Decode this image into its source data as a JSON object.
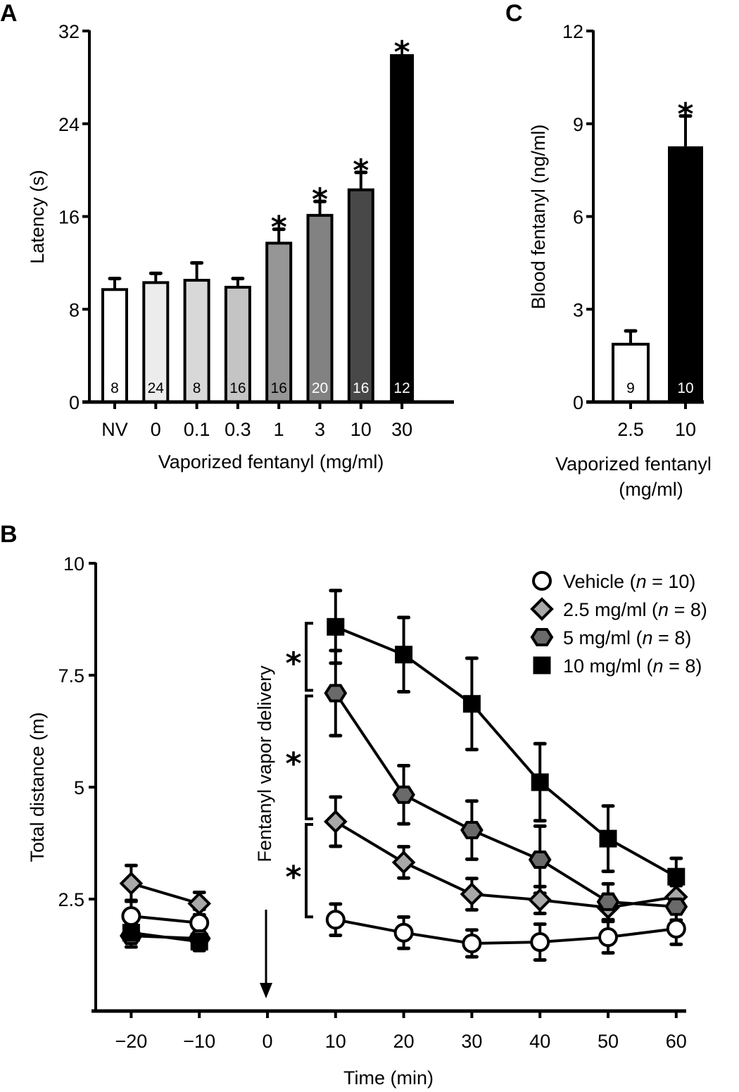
{
  "chart_data": [
    {
      "id": "A",
      "panel_label": "A",
      "type": "bar",
      "title": "",
      "xlabel": "Vaporized fentanyl (mg/ml)",
      "ylabel": "Latency (s)",
      "ylim": [
        0,
        32
      ],
      "yticks": [
        0,
        8,
        16,
        24,
        32
      ],
      "grid": false,
      "categories": [
        "NV",
        "0",
        "0.1",
        "0.3",
        "1",
        "3",
        "10",
        "30"
      ],
      "values": [
        9.7,
        10.3,
        10.5,
        9.9,
        13.7,
        16.1,
        18.3,
        30.0
      ],
      "error_upper": [
        0.95,
        0.8,
        1.5,
        0.75,
        1.2,
        1.2,
        1.5,
        0
      ],
      "n_labels": [
        "8",
        "24",
        "8",
        "16",
        "16",
        "20",
        "16",
        "12"
      ],
      "significant": [
        false,
        false,
        false,
        false,
        true,
        true,
        true,
        true
      ],
      "bar_colors": [
        "#ffffff",
        "#ececec",
        "#d8d8d8",
        "#c4c4c4",
        "#969696",
        "#828282",
        "#484848",
        "#000000"
      ],
      "n_label_colors": [
        "#000000",
        "#000000",
        "#000000",
        "#000000",
        "#000000",
        "#ffffff",
        "#ffffff",
        "#ffffff"
      ],
      "significance_marker": "*"
    },
    {
      "id": "C",
      "panel_label": "C",
      "type": "bar",
      "title": "",
      "xlabel": "Vaporized fentanyl (mg/ml)",
      "xlabel_lines": [
        "Vaporized fentanyl",
        "(mg/ml)"
      ],
      "ylabel": "Blood fentanyl (ng/ml)",
      "ylim": [
        0,
        12
      ],
      "yticks": [
        0,
        3,
        6,
        9,
        12
      ],
      "grid": false,
      "categories": [
        "2.5",
        "10"
      ],
      "values": [
        1.87,
        8.27
      ],
      "error_upper": [
        0.43,
        0.98
      ],
      "n_labels": [
        "9",
        "10"
      ],
      "significant": [
        false,
        true
      ],
      "bar_colors": [
        "#ffffff",
        "#000000"
      ],
      "n_label_colors": [
        "#000000",
        "#ffffff"
      ],
      "significance_marker": "*"
    },
    {
      "id": "B",
      "panel_label": "B",
      "type": "line",
      "title": "",
      "xlabel": "Time (min)",
      "ylabel": "Total distance (m)",
      "ylim": [
        0,
        10
      ],
      "yticks": [
        2.5,
        5,
        7.5,
        10
      ],
      "ytick_labels": [
        "2.5",
        "5",
        "7.5",
        "10"
      ],
      "xlim": [
        -25,
        62
      ],
      "x": [
        -20,
        -10,
        0,
        10,
        20,
        30,
        40,
        50,
        60
      ],
      "xtick_labels": [
        "−20",
        "−10",
        "0",
        "10",
        "20",
        "30",
        "40",
        "50",
        "60"
      ],
      "grid": false,
      "legend_position": "top-right",
      "annotation": {
        "text": "Fentanyl vapor delivery",
        "at_x": 0,
        "arrow": "down"
      },
      "significance_brackets": [
        {
          "between": [
            "10 mg/ml",
            "5 mg/ml"
          ],
          "marker": "*"
        },
        {
          "between": [
            "5 mg/ml",
            "2.5 mg/ml"
          ],
          "marker": "*"
        },
        {
          "between": [
            "2.5 mg/ml",
            "Vehicle"
          ],
          "marker": "*"
        }
      ],
      "series": [
        {
          "name": "Vehicle",
          "legend_label": "Vehicle (",
          "n_text": "n",
          "n_value": " = 10)",
          "marker": "circle",
          "fill": "#ffffff",
          "x": [
            -20,
            -10,
            10,
            20,
            30,
            40,
            50,
            60
          ],
          "values": [
            2.12,
            1.97,
            2.04,
            1.75,
            1.51,
            1.54,
            1.65,
            1.84
          ],
          "errors": [
            0.35,
            0.3,
            0.35,
            0.35,
            0.3,
            0.4,
            0.35,
            0.35
          ]
        },
        {
          "name": "2.5 mg/ml",
          "legend_label": "2.5 mg/ml (",
          "n_text": "n",
          "n_value": " = 8)",
          "marker": "diamond",
          "fill": "#a8a8a8",
          "x": [
            -20,
            -10,
            10,
            20,
            30,
            40,
            50,
            60
          ],
          "values": [
            2.85,
            2.4,
            4.23,
            3.32,
            2.61,
            2.48,
            2.31,
            2.55
          ],
          "errors": [
            0.4,
            0.25,
            0.55,
            0.35,
            0.35,
            0.3,
            0.3,
            0.25
          ]
        },
        {
          "name": "5 mg/ml",
          "legend_label": "5 mg/ml (",
          "n_text": "n",
          "n_value": " = 8)",
          "marker": "hexagon",
          "fill": "#6a6a6a",
          "x": [
            -20,
            -10,
            10,
            20,
            30,
            40,
            50,
            60
          ],
          "values": [
            1.68,
            1.62,
            7.1,
            4.83,
            4.04,
            3.38,
            2.44,
            2.33
          ],
          "errors": [
            0.25,
            0.2,
            0.95,
            0.65,
            0.65,
            0.75,
            0.4,
            0.3
          ]
        },
        {
          "name": "10 mg/ml",
          "legend_label": "10 mg/ml (",
          "n_text": "n",
          "n_value": " = 8)",
          "marker": "square",
          "fill": "#000000",
          "x": [
            -20,
            -10,
            10,
            20,
            30,
            40,
            50,
            60
          ],
          "values": [
            1.75,
            1.55,
            8.58,
            7.96,
            6.86,
            5.11,
            3.85,
            3.0
          ],
          "errors": [
            0.2,
            0.2,
            0.81,
            0.83,
            1.02,
            0.86,
            0.73,
            0.41
          ]
        }
      ]
    }
  ]
}
